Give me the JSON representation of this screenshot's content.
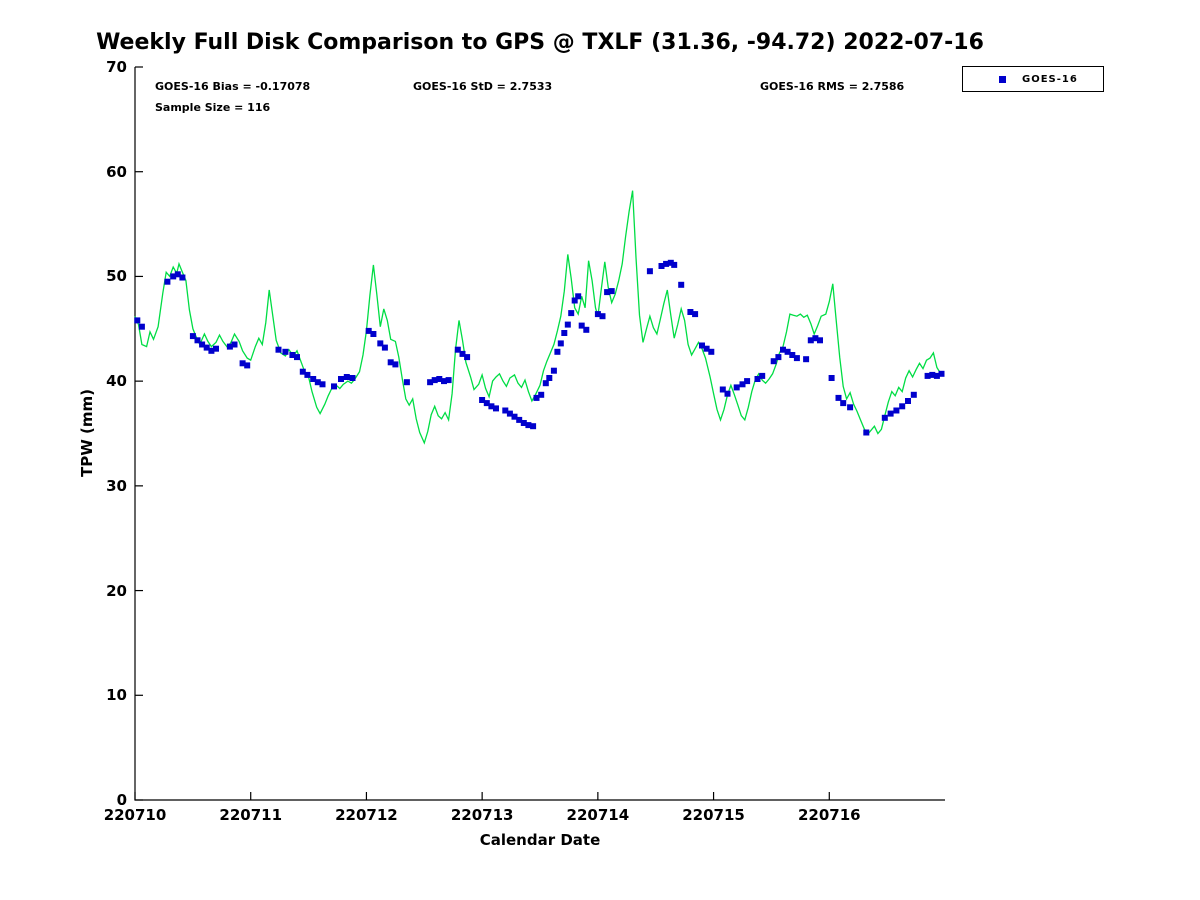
{
  "title": "Weekly Full Disk Comparison to GPS @ TXLF (31.36, -94.72) 2022-07-16",
  "stats_labels": {
    "bias": "GOES-16 Bias = -0.17078",
    "std": "GOES-16 StD = 2.7533",
    "rms": "GOES-16 RMS = 2.7586",
    "sample_size": "Sample Size = 116"
  },
  "axes": {
    "xlabel": "Calendar Date",
    "ylabel": "TPW (mm)"
  },
  "legend": {
    "position": "top-right-outside",
    "items": [
      {
        "label": "GOES-16",
        "marker": "square",
        "color": "#0000cc"
      }
    ]
  },
  "colors": {
    "gps_line": "#00dd44",
    "goes16_marker": "#0000cc",
    "axis": "#000000",
    "background": "#ffffff"
  },
  "chart_data": {
    "type": "line",
    "title": "Weekly Full Disk Comparison to GPS @ TXLF (31.36, -94.72) 2022-07-16",
    "xlabel": "Calendar Date",
    "ylabel": "TPW (mm)",
    "xlim": [
      220710,
      220717
    ],
    "ylim": [
      0,
      70
    ],
    "x_ticks": [
      220710,
      220711,
      220712,
      220713,
      220714,
      220715,
      220716
    ],
    "y_ticks": [
      0,
      10,
      20,
      30,
      40,
      50,
      60,
      70
    ],
    "grid": false,
    "legend_position": "top-right-outside",
    "x_base": 220710,
    "x_unit": "x value = x_base + offset in days (YYMMDD calendar date axis)",
    "stats": {
      "bias": -0.17078,
      "std": 2.7533,
      "rms": 2.7586,
      "sample_size": 116
    },
    "series": [
      {
        "name": "GPS",
        "type": "line",
        "color": "#00dd44",
        "x_offset_days": [
          0.0,
          0.03,
          0.06,
          0.1,
          0.13,
          0.16,
          0.2,
          0.24,
          0.27,
          0.3,
          0.33,
          0.36,
          0.38,
          0.41,
          0.44,
          0.47,
          0.5,
          0.53,
          0.56,
          0.6,
          0.63,
          0.66,
          0.7,
          0.73,
          0.76,
          0.8,
          0.83,
          0.86,
          0.9,
          0.93,
          0.97,
          1.0,
          1.04,
          1.07,
          1.1,
          1.13,
          1.16,
          1.19,
          1.22,
          1.26,
          1.3,
          1.33,
          1.37,
          1.4,
          1.44,
          1.47,
          1.5,
          1.53,
          1.57,
          1.6,
          1.64,
          1.67,
          1.7,
          1.74,
          1.77,
          1.8,
          1.84,
          1.87,
          1.9,
          1.94,
          1.97,
          2.0,
          2.03,
          2.06,
          2.09,
          2.12,
          2.15,
          2.18,
          2.21,
          2.25,
          2.28,
          2.31,
          2.34,
          2.37,
          2.4,
          2.43,
          2.46,
          2.5,
          2.53,
          2.56,
          2.59,
          2.62,
          2.65,
          2.68,
          2.71,
          2.74,
          2.77,
          2.8,
          2.83,
          2.86,
          2.9,
          2.93,
          2.97,
          3.0,
          3.03,
          3.06,
          3.09,
          3.12,
          3.15,
          3.18,
          3.21,
          3.24,
          3.28,
          3.31,
          3.34,
          3.37,
          3.4,
          3.43,
          3.46,
          3.5,
          3.53,
          3.56,
          3.59,
          3.62,
          3.65,
          3.68,
          3.71,
          3.74,
          3.77,
          3.8,
          3.83,
          3.86,
          3.89,
          3.92,
          3.95,
          3.98,
          4.0,
          4.03,
          4.06,
          4.09,
          4.12,
          4.15,
          4.18,
          4.21,
          4.24,
          4.27,
          4.3,
          4.33,
          4.36,
          4.39,
          4.42,
          4.45,
          4.48,
          4.51,
          4.54,
          4.57,
          4.6,
          4.63,
          4.66,
          4.69,
          4.72,
          4.75,
          4.78,
          4.81,
          4.84,
          4.87,
          4.9,
          4.93,
          4.97,
          5.0,
          5.03,
          5.06,
          5.09,
          5.12,
          5.15,
          5.18,
          5.21,
          5.24,
          5.27,
          5.3,
          5.33,
          5.36,
          5.39,
          5.42,
          5.45,
          5.48,
          5.51,
          5.54,
          5.57,
          5.6,
          5.63,
          5.66,
          5.69,
          5.72,
          5.75,
          5.78,
          5.81,
          5.84,
          5.87,
          5.9,
          5.93,
          5.97,
          6.0,
          6.03,
          6.06,
          6.09,
          6.12,
          6.15,
          6.18,
          6.21,
          6.24,
          6.27,
          6.3,
          6.33,
          6.36,
          6.39,
          6.42,
          6.45,
          6.48,
          6.51,
          6.54,
          6.57,
          6.6,
          6.63,
          6.66,
          6.69,
          6.72,
          6.75,
          6.78,
          6.81,
          6.84,
          6.87,
          6.9,
          6.93,
          6.97
        ],
        "y": [
          46.2,
          45.4,
          43.5,
          43.3,
          44.7,
          44.0,
          45.2,
          48.4,
          50.4,
          50.0,
          50.9,
          50.3,
          51.2,
          50.4,
          49.6,
          46.8,
          45.0,
          44.2,
          43.5,
          44.5,
          43.8,
          43.3,
          43.7,
          44.4,
          43.8,
          43.2,
          43.7,
          44.5,
          43.8,
          42.9,
          42.2,
          42.0,
          43.3,
          44.1,
          43.5,
          45.6,
          48.7,
          46.3,
          43.9,
          42.7,
          42.4,
          43.0,
          42.4,
          42.9,
          41.7,
          40.8,
          40.4,
          39.0,
          37.5,
          36.9,
          37.8,
          38.6,
          39.3,
          39.6,
          39.3,
          39.7,
          40.0,
          39.8,
          40.2,
          40.9,
          42.5,
          44.8,
          48.2,
          51.1,
          48.3,
          45.2,
          46.9,
          45.8,
          44.0,
          43.8,
          42.3,
          40.2,
          38.3,
          37.7,
          38.3,
          36.4,
          35.1,
          34.1,
          35.2,
          36.8,
          37.6,
          36.7,
          36.4,
          37.0,
          36.3,
          38.8,
          43.0,
          45.8,
          43.9,
          41.8,
          40.4,
          39.2,
          39.7,
          40.6,
          39.3,
          38.5,
          40.0,
          40.4,
          40.7,
          40.0,
          39.5,
          40.3,
          40.6,
          39.8,
          39.4,
          40.1,
          39.0,
          38.1,
          38.7,
          39.6,
          41.0,
          41.9,
          42.7,
          43.5,
          44.8,
          46.2,
          48.6,
          52.1,
          49.8,
          47.0,
          46.4,
          48.1,
          47.0,
          51.5,
          49.6,
          47.0,
          46.2,
          48.8,
          51.4,
          48.9,
          47.5,
          48.3,
          49.6,
          51.2,
          53.8,
          56.2,
          58.2,
          51.8,
          46.3,
          43.7,
          45.0,
          46.2,
          45.1,
          44.5,
          45.9,
          47.4,
          48.7,
          46.3,
          44.1,
          45.4,
          46.9,
          45.8,
          43.5,
          42.5,
          43.1,
          43.7,
          43.1,
          42.2,
          40.4,
          38.8,
          37.3,
          36.3,
          37.3,
          38.7,
          39.6,
          38.7,
          37.7,
          36.7,
          36.3,
          37.5,
          39.0,
          40.1,
          40.7,
          40.1,
          39.8,
          40.2,
          40.7,
          41.6,
          42.7,
          43.3,
          44.7,
          46.4,
          46.3,
          46.2,
          46.4,
          46.1,
          46.3,
          45.5,
          44.5,
          45.3,
          46.2,
          46.4,
          47.6,
          49.3,
          45.8,
          42.3,
          39.5,
          38.3,
          38.9,
          37.8,
          37.1,
          36.3,
          35.5,
          34.9,
          35.3,
          35.7,
          35.0,
          35.4,
          36.7,
          38.0,
          39.0,
          38.6,
          39.4,
          39.0,
          40.3,
          41.0,
          40.4,
          41.1,
          41.7,
          41.2,
          42.0,
          42.2,
          42.7,
          41.3,
          40.6
        ]
      },
      {
        "name": "GOES-16",
        "type": "scatter",
        "marker": "square",
        "color": "#0000cc",
        "x_offset_days": [
          0.02,
          0.06,
          0.28,
          0.33,
          0.37,
          0.41,
          0.5,
          0.54,
          0.58,
          0.62,
          0.66,
          0.7,
          0.82,
          0.86,
          0.93,
          0.97,
          1.24,
          1.3,
          1.36,
          1.4,
          1.45,
          1.49,
          1.54,
          1.58,
          1.62,
          1.72,
          1.78,
          1.83,
          1.88,
          2.02,
          2.06,
          2.12,
          2.16,
          2.21,
          2.25,
          2.35,
          2.55,
          2.59,
          2.63,
          2.67,
          2.71,
          2.79,
          2.83,
          2.87,
          3.0,
          3.04,
          3.08,
          3.12,
          3.2,
          3.24,
          3.28,
          3.32,
          3.36,
          3.4,
          3.44,
          3.47,
          3.51,
          3.55,
          3.58,
          3.62,
          3.65,
          3.68,
          3.71,
          3.74,
          3.77,
          3.8,
          3.83,
          3.86,
          3.9,
          4.0,
          4.04,
          4.08,
          4.12,
          4.45,
          4.55,
          4.59,
          4.63,
          4.66,
          4.72,
          4.8,
          4.84,
          4.9,
          4.94,
          4.98,
          5.08,
          5.12,
          5.2,
          5.25,
          5.29,
          5.38,
          5.42,
          5.52,
          5.56,
          5.6,
          5.64,
          5.68,
          5.72,
          5.8,
          5.84,
          5.88,
          5.92,
          6.02,
          6.08,
          6.12,
          6.18,
          6.32,
          6.48,
          6.53,
          6.58,
          6.63,
          6.68,
          6.73,
          6.85,
          6.89,
          6.93,
          6.97
        ],
        "y": [
          45.8,
          45.2,
          49.5,
          50.0,
          50.2,
          49.9,
          44.3,
          43.9,
          43.5,
          43.2,
          42.9,
          43.1,
          43.3,
          43.5,
          41.7,
          41.5,
          43.0,
          42.8,
          42.5,
          42.3,
          40.9,
          40.6,
          40.2,
          39.9,
          39.7,
          39.5,
          40.2,
          40.4,
          40.3,
          44.8,
          44.5,
          43.6,
          43.2,
          41.8,
          41.6,
          39.9,
          39.9,
          40.1,
          40.2,
          40.0,
          40.1,
          43.0,
          42.6,
          42.3,
          38.2,
          37.9,
          37.6,
          37.4,
          37.2,
          36.9,
          36.6,
          36.3,
          36.0,
          35.8,
          35.7,
          38.4,
          38.7,
          39.8,
          40.3,
          41.0,
          42.8,
          43.6,
          44.6,
          45.4,
          46.5,
          47.7,
          48.1,
          45.3,
          44.9,
          46.4,
          46.2,
          48.5,
          48.6,
          50.5,
          51.0,
          51.2,
          51.3,
          51.1,
          49.2,
          46.6,
          46.4,
          43.4,
          43.1,
          42.8,
          39.2,
          38.8,
          39.4,
          39.7,
          40.0,
          40.2,
          40.5,
          41.9,
          42.3,
          43.0,
          42.8,
          42.5,
          42.2,
          42.1,
          43.9,
          44.1,
          43.9,
          40.3,
          38.4,
          37.9,
          37.5,
          35.1,
          36.5,
          36.9,
          37.2,
          37.6,
          38.1,
          38.7,
          40.5,
          40.6,
          40.5,
          40.7
        ]
      }
    ]
  }
}
